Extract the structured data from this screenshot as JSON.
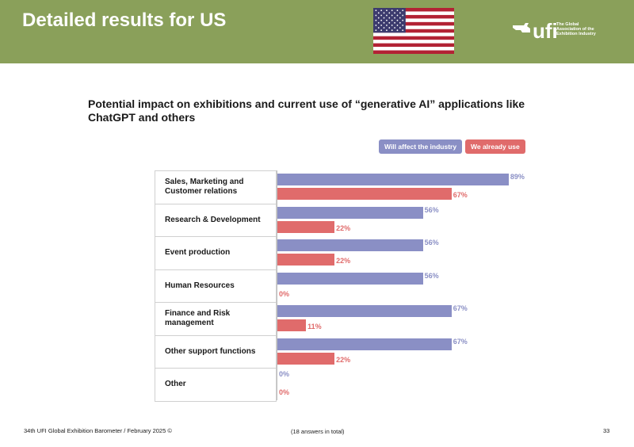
{
  "header": {
    "title": "Detailed results for US",
    "logo_text": "ufi",
    "logo_tagline": "The Global Association of the Exhibition Industry"
  },
  "colors": {
    "header_bg": "#8aa05a",
    "affect": "#8a8fc5",
    "use": "#e06b6b"
  },
  "icons": {
    "flag": "us-flag-icon",
    "logo": "ufi-logo-icon"
  },
  "chart_data": {
    "type": "bar",
    "orientation": "horizontal",
    "title": "Potential impact on exhibitions and current use of “generative AI” applications like ChatGPT and others",
    "categories": [
      "Sales, Marketing and Customer relations",
      "Research & Development",
      "Event production",
      "Human Resources",
      "Finance and Risk management",
      "Other support functions",
      "Other"
    ],
    "series": [
      {
        "name": "Will affect the industry",
        "values": [
          89,
          56,
          56,
          56,
          67,
          67,
          0
        ],
        "labels": [
          "89%",
          "56%",
          "56%",
          "56%",
          "67%",
          "67%",
          "0%"
        ]
      },
      {
        "name": "We already use",
        "values": [
          67,
          22,
          22,
          0,
          11,
          22,
          0
        ],
        "labels": [
          "67%",
          "22%",
          "22%",
          "0%",
          "11%",
          "22%",
          "0%"
        ]
      }
    ],
    "xlim": [
      0,
      100
    ],
    "legend_position": "top-right",
    "grid": false
  },
  "footer": {
    "source": "34th UFI Global Exhibition Barometer / February 2025 ©",
    "note": "(18 answers in total)",
    "page": "33"
  }
}
